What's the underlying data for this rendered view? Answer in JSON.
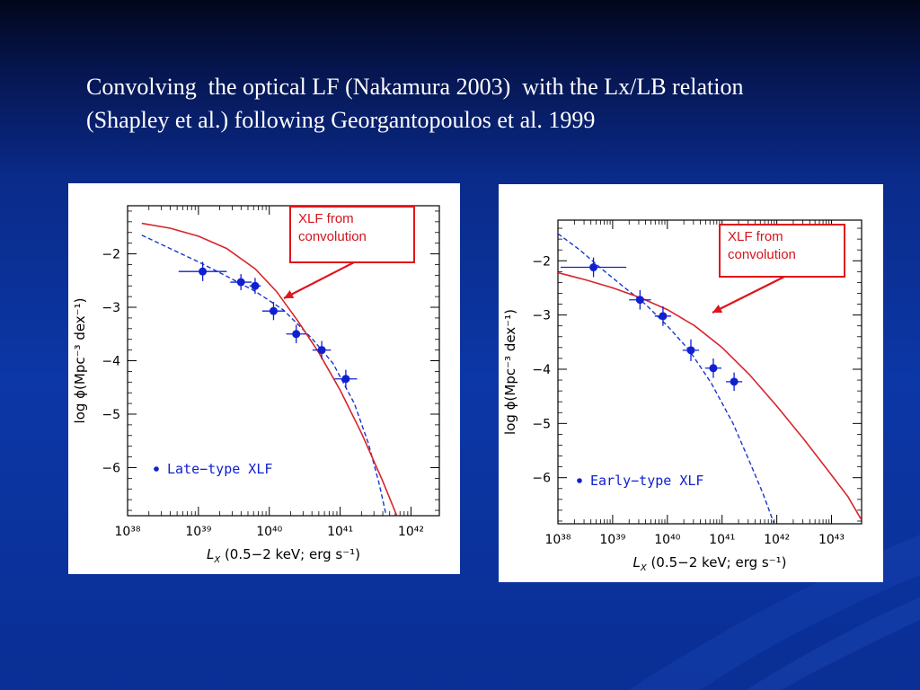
{
  "slide": {
    "heading_line1": "Convolving  the optical LF (Nakamura 2003)  with the Lx/LB relation",
    "heading_line2": "(Shapley et al.) following Georgantopoulos et al. 1999",
    "colors": {
      "background": "#0c37a6",
      "points": "#1020d0",
      "dashed_curve": "#1a35d0",
      "solid_curve": "#d8242a",
      "annotation": "#e0141b"
    }
  },
  "annotations": {
    "left": {
      "line1": "XLF from",
      "line2": "convolution"
    },
    "right": {
      "line1": "XLF from",
      "line2": "convolution"
    }
  },
  "chart_data": [
    {
      "type": "scatter",
      "legend_label": "Late−type XLF",
      "legend_position": "bottom-left",
      "xlabel": "(0.5−2 keV;  erg s⁻¹)",
      "xlabel_symbol": "L",
      "xlabel_subscript": "X",
      "ylabel": "log  ϕ(Mpc⁻³ dex⁻¹)",
      "x_log": true,
      "xlim": [
        38,
        42.4
      ],
      "ylim": [
        -6.9,
        -1.1
      ],
      "xticks": [
        38,
        39,
        40,
        41,
        42
      ],
      "xtick_labels": [
        "10³⁸",
        "10³⁹",
        "10⁴⁰",
        "10⁴¹",
        "10⁴²"
      ],
      "yticks": [
        -6,
        -5,
        -4,
        -3,
        -2
      ],
      "ytick_labels": [
        "−6",
        "−5",
        "−4",
        "−3",
        "−2"
      ],
      "points": [
        {
          "x": 39.06,
          "y": -2.33,
          "xerr": 0.34,
          "yerr": 0.18
        },
        {
          "x": 39.6,
          "y": -2.53,
          "xerr": 0.15,
          "yerr": 0.15
        },
        {
          "x": 39.8,
          "y": -2.6,
          "xerr": 0.08,
          "yerr": 0.15
        },
        {
          "x": 40.06,
          "y": -3.07,
          "xerr": 0.16,
          "yerr": 0.17
        },
        {
          "x": 40.38,
          "y": -3.5,
          "xerr": 0.14,
          "yerr": 0.17
        },
        {
          "x": 40.74,
          "y": -3.8,
          "xerr": 0.13,
          "yerr": 0.17
        },
        {
          "x": 41.08,
          "y": -4.34,
          "xerr": 0.16,
          "yerr": 0.17
        }
      ],
      "series": [
        {
          "style": "dashed",
          "color": "#1a35d0",
          "x": [
            38.2,
            38.6,
            39.0,
            39.4,
            39.8,
            40.2,
            40.6,
            40.9,
            41.2,
            41.4,
            41.55,
            41.65
          ],
          "y": [
            -1.65,
            -1.9,
            -2.15,
            -2.42,
            -2.7,
            -3.05,
            -3.58,
            -4.05,
            -4.8,
            -5.55,
            -6.3,
            -6.9
          ]
        },
        {
          "style": "solid",
          "color": "#d8242a",
          "x": [
            38.2,
            38.6,
            39.0,
            39.4,
            39.8,
            40.1,
            40.4,
            40.7,
            41.0,
            41.3,
            41.6,
            41.8
          ],
          "y": [
            -1.43,
            -1.52,
            -1.67,
            -1.9,
            -2.28,
            -2.7,
            -3.25,
            -3.85,
            -4.55,
            -5.35,
            -6.25,
            -6.9
          ]
        }
      ]
    },
    {
      "type": "scatter",
      "legend_label": "Early−type XLF",
      "legend_position": "bottom-left",
      "xlabel": "(0.5−2 keV;  erg s⁻¹)",
      "xlabel_symbol": "L",
      "xlabel_subscript": "X",
      "ylabel": "log  ϕ(Mpc⁻³ dex⁻¹)",
      "x_log": true,
      "xlim": [
        38,
        43.55
      ],
      "ylim": [
        -6.85,
        -1.25
      ],
      "xticks": [
        38,
        39,
        40,
        41,
        42,
        43
      ],
      "xtick_labels": [
        "10³⁸",
        "10³⁹",
        "10⁴⁰",
        "10⁴¹",
        "10⁴²",
        "10⁴³"
      ],
      "yticks": [
        -6,
        -5,
        -4,
        -3,
        -2
      ],
      "ytick_labels": [
        "−6",
        "−5",
        "−4",
        "−3",
        "−2"
      ],
      "points": [
        {
          "x": 38.65,
          "y": -2.12,
          "xerr": 0.6,
          "yerr": 0.18
        },
        {
          "x": 39.5,
          "y": -2.72,
          "xerr": 0.2,
          "yerr": 0.18
        },
        {
          "x": 39.92,
          "y": -3.02,
          "xerr": 0.15,
          "yerr": 0.18
        },
        {
          "x": 40.43,
          "y": -3.65,
          "xerr": 0.15,
          "yerr": 0.2
        },
        {
          "x": 40.84,
          "y": -3.98,
          "xerr": 0.15,
          "yerr": 0.18
        },
        {
          "x": 41.22,
          "y": -4.23,
          "xerr": 0.15,
          "yerr": 0.17
        }
      ],
      "series": [
        {
          "style": "dashed",
          "color": "#1a35d0",
          "x": [
            38.0,
            38.4,
            38.8,
            39.2,
            39.6,
            40.0,
            40.4,
            40.8,
            41.2,
            41.5,
            41.75,
            41.95
          ],
          "y": [
            -1.5,
            -1.8,
            -2.15,
            -2.48,
            -2.8,
            -3.2,
            -3.65,
            -4.25,
            -5.0,
            -5.7,
            -6.3,
            -6.85
          ]
        },
        {
          "style": "solid",
          "color": "#d8242a",
          "x": [
            38.0,
            38.5,
            39.0,
            39.5,
            40.0,
            40.5,
            41.0,
            41.5,
            42.0,
            42.5,
            43.0,
            43.3,
            43.55
          ],
          "y": [
            -2.22,
            -2.35,
            -2.5,
            -2.68,
            -2.9,
            -3.2,
            -3.6,
            -4.1,
            -4.68,
            -5.3,
            -5.95,
            -6.35,
            -6.78
          ]
        }
      ]
    }
  ]
}
